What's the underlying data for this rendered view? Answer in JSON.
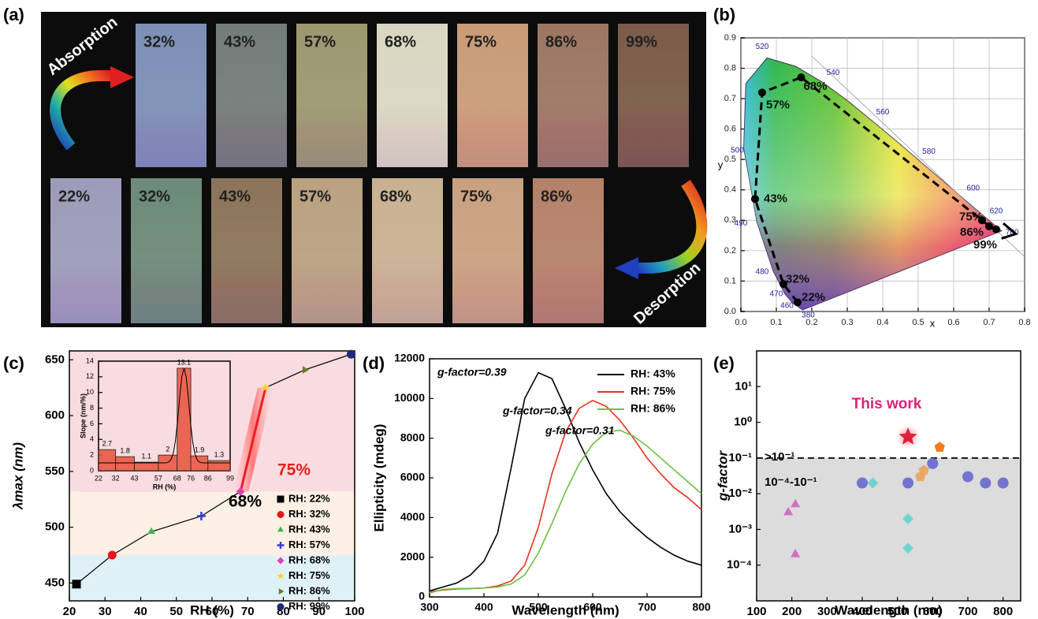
{
  "chart_data": [
    {
      "type": "photo-grid",
      "label": "(a)",
      "absorption": "Absorption",
      "desorption": "Desorption",
      "rows": [
        [
          {
            "label": "32%",
            "color": "#7c8fb5"
          },
          {
            "label": "43%",
            "color": "#737c78"
          },
          {
            "label": "57%",
            "color": "#9b9870"
          },
          {
            "label": "68%",
            "color": "#d9d7c2"
          },
          {
            "label": "75%",
            "color": "#c99b77"
          },
          {
            "label": "86%",
            "color": "#9c7663"
          },
          {
            "label": "99%",
            "color": "#7b5b49"
          }
        ],
        [
          {
            "label": "22%",
            "color": "#9c9cba"
          },
          {
            "label": "32%",
            "color": "#6c8a79"
          },
          {
            "label": "43%",
            "color": "#8b7459"
          },
          {
            "label": "57%",
            "color": "#b9a181"
          },
          {
            "label": "68%",
            "color": "#c9b192"
          },
          {
            "label": "75%",
            "color": "#c9a180"
          },
          {
            "label": "86%",
            "color": "#b58169"
          }
        ]
      ]
    },
    {
      "type": "chromaticity",
      "label": "(b)",
      "x_label": "x",
      "y_label": "y",
      "xlim": [
        0,
        0.8
      ],
      "ylim": [
        0,
        0.9
      ],
      "xticks": [
        {
          "value": 0,
          "label": "0.0"
        },
        0.1,
        0.2,
        0.3,
        0.4,
        0.5,
        0.6,
        0.7,
        0.8
      ],
      "yticks": [
        {
          "value": 0,
          "label": "0.0"
        },
        0.1,
        0.2,
        0.3,
        0.4,
        0.5,
        0.6,
        0.7,
        0.8,
        0.9
      ],
      "grid": true,
      "wavelengths": [
        380,
        460,
        470,
        480,
        490,
        500,
        520,
        540,
        560,
        580,
        600,
        620,
        700
      ],
      "x": [
        0.16,
        0.12,
        0.04,
        0.06,
        0.17,
        0.68,
        0.7,
        0.72
      ],
      "values": [
        0.03,
        0.09,
        0.37,
        0.72,
        0.77,
        0.3,
        0.28,
        0.27
      ],
      "point_labels": [
        "22%",
        "32%",
        "43%",
        "57%",
        "68%",
        "75%",
        "86%",
        "99%"
      ]
    },
    {
      "type": "line",
      "label": "(c)",
      "x_label": "RH (%)",
      "y_label": "λmax (nm)",
      "xlim": [
        20,
        100
      ],
      "xticks": [
        20,
        30,
        40,
        50,
        60,
        70,
        80,
        90,
        100
      ],
      "ylim": [
        434,
        658
      ],
      "yticks": [
        450,
        500,
        550,
        600,
        650
      ],
      "series": [
        {
          "name": "RH: 22%",
          "color": "#000000",
          "marker": "square",
          "x": [
            22
          ],
          "values": [
            449
          ]
        },
        {
          "name": "RH: 32%",
          "color": "#e8141c",
          "marker": "circle",
          "x": [
            32
          ],
          "values": [
            475
          ]
        },
        {
          "name": "RH: 43%",
          "color": "#3cb44b",
          "marker": "triangle",
          "x": [
            43
          ],
          "values": [
            496
          ]
        },
        {
          "name": "RH: 57%",
          "color": "#3a3ad0",
          "marker": "plus",
          "x": [
            57
          ],
          "values": [
            510
          ]
        },
        {
          "name": "RH: 68%",
          "color": "#e040b0",
          "marker": "diamond",
          "x": [
            68
          ],
          "values": [
            532
          ]
        },
        {
          "name": "RH: 75%",
          "color": "#ffd21a",
          "marker": "star",
          "x": [
            75
          ],
          "values": [
            625
          ]
        },
        {
          "name": "RH: 86%",
          "color": "#6b7a28",
          "marker": "triangle-right",
          "x": [
            86
          ],
          "values": [
            641
          ]
        },
        {
          "name": "RH: 99%",
          "color": "#1c2a78",
          "marker": "circle",
          "x": [
            99
          ],
          "values": [
            655
          ]
        }
      ],
      "annotations": [
        "68%",
        "75%"
      ],
      "inset": {
        "type": "histogram",
        "x_label": "RH (%)",
        "y_label": "Slope (nm/%)",
        "color": "#e8503a",
        "bins": [
          22,
          32,
          43,
          57,
          68,
          76,
          86,
          99
        ],
        "values": [
          2.7,
          1.8,
          1.1,
          2.0,
          13.1,
          1.9,
          1.3
        ],
        "xlim": [
          22,
          99
        ],
        "ylim": [
          0,
          14
        ],
        "yticks": [
          0,
          2,
          4,
          6,
          8,
          10,
          12,
          14
        ]
      }
    },
    {
      "type": "line",
      "label": "(d)",
      "x_label": "Wavelength (nm)",
      "y_label": "Ellipticity (mdeg)",
      "xlim": [
        300,
        800
      ],
      "xticks": [
        300,
        400,
        500,
        600,
        700,
        800
      ],
      "ylim": [
        0,
        12000
      ],
      "yticks": [
        0,
        2000,
        4000,
        6000,
        8000,
        10000,
        12000
      ],
      "x": [
        300,
        325,
        350,
        375,
        400,
        425,
        450,
        475,
        500,
        525,
        550,
        575,
        600,
        625,
        650,
        675,
        700,
        725,
        750,
        775,
        800
      ],
      "series": [
        {
          "name": "RH: 43%",
          "color": "#000000",
          "values": [
            300,
            500,
            700,
            1100,
            1800,
            3200,
            6500,
            10000,
            11300,
            11000,
            9500,
            7800,
            6400,
            5200,
            4300,
            3600,
            3000,
            2500,
            2100,
            1800,
            1600
          ]
        },
        {
          "name": "RH: 75%",
          "color": "#e8321c",
          "values": [
            250,
            350,
            400,
            420,
            450,
            550,
            800,
            1600,
            3500,
            6200,
            8300,
            9500,
            9900,
            9600,
            8900,
            8000,
            7000,
            6200,
            5500,
            5000,
            4400
          ]
        },
        {
          "name": "RH: 86%",
          "color": "#6cc040",
          "values": [
            200,
            380,
            420,
            430,
            450,
            500,
            650,
            1100,
            2200,
            3700,
            5300,
            6700,
            7700,
            8300,
            8400,
            8100,
            7600,
            7000,
            6400,
            5800,
            5200
          ]
        }
      ],
      "annotations": [
        "g-factor=0.39",
        "g-factor=0.34",
        "g-factor=0.31"
      ]
    },
    {
      "type": "scatter",
      "label": "(e)",
      "x_label": "Wavelength (nm)",
      "y_label": "g-factor",
      "log_y": true,
      "xlim": [
        100,
        850
      ],
      "xticks": [
        100,
        200,
        300,
        400,
        500,
        600,
        700,
        800
      ],
      "ylim": [
        1e-05,
        100
      ],
      "yticks": [
        {
          "value": 0.0001,
          "label": "10⁻⁴"
        },
        {
          "value": 0.001,
          "label": "10⁻³"
        },
        {
          "value": 0.01,
          "label": "10⁻²"
        },
        {
          "value": 0.1,
          "label": "10⁻¹"
        },
        {
          "value": 1,
          "label": "10⁰"
        },
        {
          "value": 10,
          "label": "10¹"
        }
      ],
      "threshold": 0.1,
      "series": [
        {
          "color": "#d070c0",
          "marker": "triangle",
          "x": [
            190,
            210,
            210
          ],
          "values": [
            0.003,
            0.005,
            0.0002
          ]
        },
        {
          "color": "#6fd4d0",
          "marker": "diamond",
          "x": [
            430,
            530,
            530
          ],
          "values": [
            0.02,
            0.002,
            0.0003
          ]
        },
        {
          "color": "#7373d2",
          "marker": "circle",
          "x": [
            400,
            530,
            600,
            700,
            750,
            800
          ],
          "values": [
            0.02,
            0.02,
            0.07,
            0.03,
            0.02,
            0.02
          ]
        },
        {
          "color": "#e8a866",
          "marker": "pentagon",
          "x": [
            565,
            575
          ],
          "values": [
            0.03,
            0.045
          ]
        },
        {
          "color": "#f07c1c",
          "marker": "pentagon",
          "x": [
            620
          ],
          "values": [
            0.2
          ]
        },
        {
          "color": "#e0203c",
          "marker": "star",
          "x": [
            530
          ],
          "values": [
            0.39
          ]
        }
      ],
      "annotations": [
        "This work",
        ">10⁻¹",
        "10⁻⁴-10⁻¹"
      ]
    }
  ]
}
